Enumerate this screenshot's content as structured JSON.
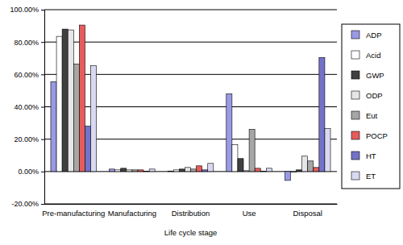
{
  "chart_data": {
    "type": "bar",
    "x_label": "Life cycle stage",
    "categories": [
      "Pre-manufacturing",
      "Manufacturing",
      "Distribution",
      "Use",
      "Disposal"
    ],
    "series": [
      {
        "name": "ADP",
        "color": "#9999e6",
        "values": [
          55.5,
          1.5,
          0.3,
          48,
          -5.5
        ]
      },
      {
        "name": "Acid",
        "color": "#ffffff",
        "values": [
          83.5,
          1,
          1,
          16.5,
          -0.5
        ]
      },
      {
        "name": "GWP",
        "color": "#404040",
        "values": [
          88,
          2,
          1.5,
          8,
          1
        ]
      },
      {
        "name": "ODP",
        "color": "#e6e6e6",
        "values": [
          87.5,
          1,
          2.5,
          0.5,
          9.5
        ]
      },
      {
        "name": "Eut",
        "color": "#a6a6a6",
        "values": [
          66.5,
          1,
          1.5,
          26,
          6.5
        ]
      },
      {
        "name": "POCP",
        "color": "#e65c5c",
        "values": [
          90.5,
          1,
          3.5,
          2,
          2.5
        ]
      },
      {
        "name": "HT",
        "color": "#7373c9",
        "values": [
          28,
          0.2,
          1,
          0.2,
          70.5
        ]
      },
      {
        "name": "ET",
        "color": "#d9d9f2",
        "values": [
          65.5,
          1.5,
          5,
          2,
          26.5
        ]
      }
    ],
    "ylim": [
      -20,
      100
    ],
    "yticks": [
      {
        "value": -20,
        "label": "-20.00%"
      },
      {
        "value": 0,
        "label": "0.00%"
      },
      {
        "value": 20,
        "label": "20.00%"
      },
      {
        "value": 40,
        "label": "40.00%"
      },
      {
        "value": 60,
        "label": "60.00%"
      },
      {
        "value": 80,
        "label": "80.00%"
      },
      {
        "value": 100,
        "label": "100.00%"
      }
    ],
    "grid": true,
    "legend": "right"
  }
}
